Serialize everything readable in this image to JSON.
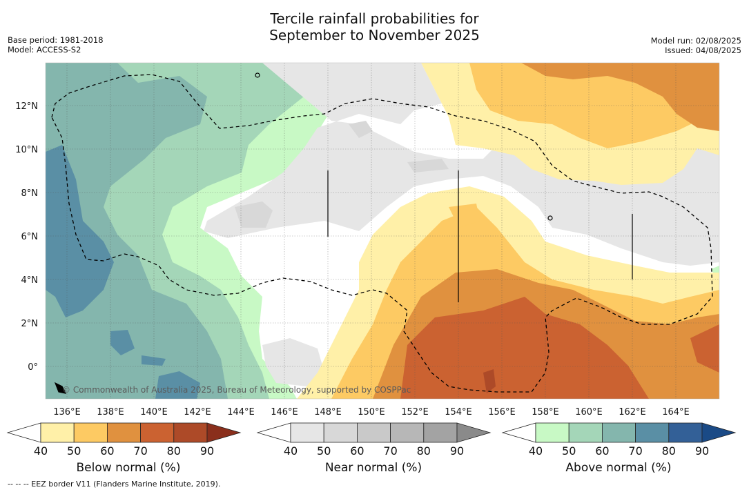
{
  "title_line1": "Tercile rainfall probabilities for",
  "title_line2": "September to November 2025",
  "base_period": "Base period: 1981-2018",
  "model": "Model: ACCESS-S2",
  "model_run": "Model run: 02/08/2025",
  "issued": "Issued: 04/08/2025",
  "credit": "© Commonwealth of Australia 2025, Bureau of Meteorology, supported by COSPPac",
  "footer_note": "-- -- -- EEZ border V11 (Flanders Marine Institute, 2019).",
  "lon_labels": [
    "136°E",
    "138°E",
    "140°E",
    "142°E",
    "144°E",
    "146°E",
    "148°E",
    "150°E",
    "152°E",
    "154°E",
    "156°E",
    "158°E",
    "160°E",
    "162°E",
    "164°E"
  ],
  "lat_labels": [
    "12°N",
    "10°N",
    "8°N",
    "6°N",
    "4°N",
    "2°N",
    "0°"
  ],
  "colorbars": [
    {
      "name": "below",
      "label": "Below normal (%)",
      "ticks": [
        "40",
        "50",
        "60",
        "70",
        "80",
        "90"
      ],
      "colors": [
        "#fff0a8",
        "#fdca63",
        "#e0913f",
        "#cb6231",
        "#ad4a28",
        "#8a2f1c"
      ]
    },
    {
      "name": "near",
      "label": "Near normal (%)",
      "ticks": [
        "40",
        "50",
        "60",
        "70",
        "80",
        "90"
      ],
      "colors": [
        "#e6e6e6",
        "#d8d8d8",
        "#c9c9c9",
        "#b7b7b7",
        "#a3a3a3",
        "#8a8a8a"
      ]
    },
    {
      "name": "above",
      "label": "Above normal (%)",
      "ticks": [
        "40",
        "50",
        "60",
        "70",
        "80",
        "90"
      ],
      "colors": [
        "#c8f9c5",
        "#a4d6b8",
        "#84b6ad",
        "#5a8fa5",
        "#336097",
        "#1a4a86"
      ]
    }
  ]
}
